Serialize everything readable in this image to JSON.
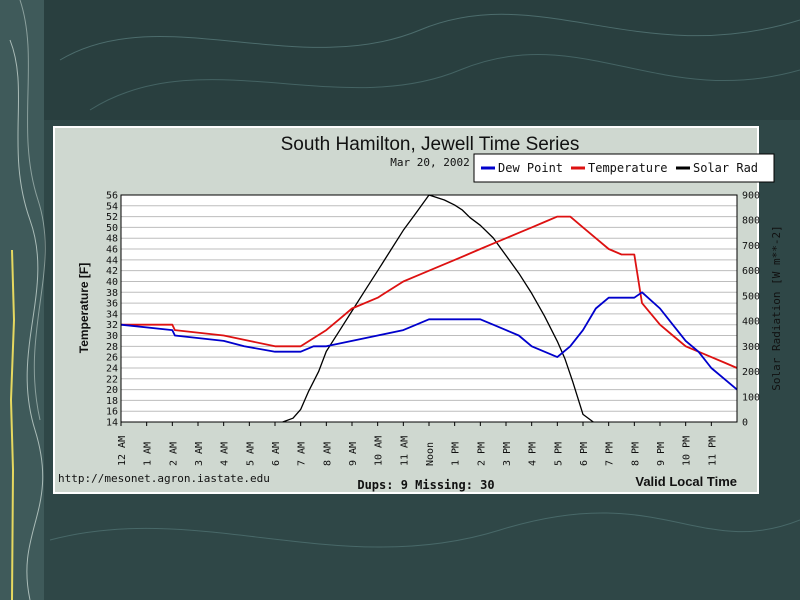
{
  "colors": {
    "slide_bg": "#2f4747",
    "panel_bg": "#cfd8d0",
    "plot_bg": "#ffffff",
    "dew_point": "#0000cc",
    "temperature": "#dd1111",
    "solar_rad": "#000000"
  },
  "chart_data": {
    "type": "line",
    "title": "South Hamilton, Jewell Time Series",
    "subtitle": "Mar 20, 2002",
    "xlabel": "Valid Local Time",
    "ylabel": "Temperature [F]",
    "y2label": "Solar Radiation [W m**-2]",
    "ylim": [
      14,
      56
    ],
    "y2lim": [
      0,
      900
    ],
    "y_ticks": [
      14,
      16,
      18,
      20,
      22,
      24,
      26,
      28,
      30,
      32,
      34,
      36,
      38,
      40,
      42,
      44,
      46,
      48,
      50,
      52,
      54,
      56
    ],
    "y2_ticks": [
      0,
      100,
      200,
      300,
      400,
      500,
      600,
      700,
      800,
      900
    ],
    "x_ticks": [
      "12 AM",
      "1 AM",
      "2 AM",
      "3 AM",
      "4 AM",
      "5 AM",
      "6 AM",
      "7 AM",
      "8 AM",
      "9 AM",
      "10 AM",
      "11 AM",
      "Noon",
      "1 PM",
      "2 PM",
      "3 PM",
      "4 PM",
      "5 PM",
      "6 PM",
      "7 PM",
      "8 PM",
      "9 PM",
      "10 PM",
      "11 PM"
    ],
    "grid": true,
    "legend": "top-right",
    "series": [
      {
        "name": "Dew Point",
        "axis": "left",
        "x": [
          0,
          2,
          2.1,
          4,
          4.8,
          6,
          7,
          7.5,
          8,
          9,
          10,
          11,
          11.5,
          12,
          12.5,
          13,
          13.5,
          14,
          14.5,
          15,
          15.5,
          16,
          16.5,
          17,
          17.5,
          18,
          18.5,
          19,
          19.5,
          20,
          20.3,
          21,
          21.5,
          22,
          22.5,
          23,
          23.5,
          24
        ],
        "y": [
          32,
          31,
          30,
          29,
          28,
          27,
          27,
          28,
          28,
          29,
          30,
          31,
          32,
          33,
          33,
          33,
          33,
          33,
          32,
          31,
          30,
          28,
          27,
          26,
          28,
          31,
          35,
          37,
          37,
          37,
          38,
          35,
          32,
          29,
          27,
          24,
          22,
          20
        ]
      },
      {
        "name": "Temperature",
        "axis": "left",
        "x": [
          0,
          2,
          2.1,
          4,
          5,
          6,
          6.5,
          7,
          8,
          8.5,
          9,
          10,
          11,
          11.5,
          12,
          12.5,
          13,
          13.5,
          14,
          14.5,
          15,
          15.5,
          16,
          16.5,
          17,
          17.5,
          18,
          18.5,
          19,
          19.5,
          20,
          20.3,
          21,
          21.5,
          22,
          22.5,
          23,
          23.5,
          24
        ],
        "y": [
          32,
          32,
          31,
          30,
          29,
          28,
          28,
          28,
          31,
          33,
          35,
          37,
          40,
          41,
          42,
          43,
          44,
          45,
          46,
          47,
          48,
          49,
          50,
          51,
          52,
          52,
          50,
          48,
          46,
          45,
          45,
          36,
          32,
          30,
          28,
          27,
          26,
          25,
          24
        ]
      },
      {
        "name": "Solar Rad",
        "axis": "right",
        "x": [
          6.3,
          6.7,
          7,
          7.3,
          7.7,
          8,
          8.5,
          9,
          9.5,
          10,
          10.5,
          11,
          11.5,
          12,
          12.3,
          12.6,
          13,
          13.3,
          13.6,
          14,
          14.5,
          15,
          15.5,
          16,
          16.5,
          17,
          17.3,
          17.6,
          18,
          18.4
        ],
        "y": [
          0,
          15,
          50,
          120,
          200,
          280,
          360,
          440,
          520,
          600,
          680,
          760,
          830,
          900,
          890,
          880,
          860,
          840,
          810,
          780,
          730,
          660,
          590,
          510,
          420,
          320,
          250,
          160,
          30,
          0
        ]
      }
    ],
    "annotations": {
      "left_footer": "http://mesonet.agron.iastate.edu",
      "center_footer": "Dups: 9 Missing: 30"
    }
  }
}
